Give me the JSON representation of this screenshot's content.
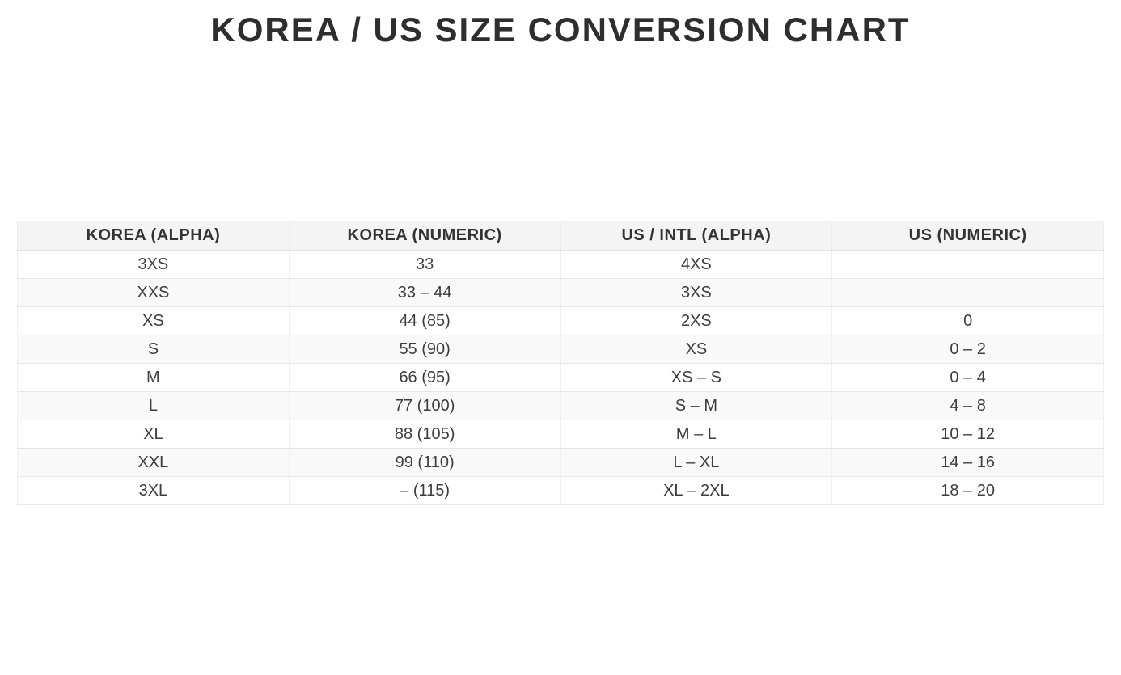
{
  "page": {
    "title": "KOREA / US SIZE CONVERSION CHART"
  },
  "table": {
    "columns": [
      "KOREA (ALPHA)",
      "KOREA (NUMERIC)",
      "US / INTL (ALPHA)",
      "US (NUMERIC)"
    ],
    "rows": [
      [
        "3XS",
        "33",
        "4XS",
        ""
      ],
      [
        "XXS",
        "33 – 44",
        "3XS",
        ""
      ],
      [
        "XS",
        "44 (85)",
        "2XS",
        "0"
      ],
      [
        "S",
        "55 (90)",
        "XS",
        "0 – 2"
      ],
      [
        "M",
        "66 (95)",
        "XS – S",
        "0 – 4"
      ],
      [
        "L",
        "77 (100)",
        "S – M",
        "4 – 8"
      ],
      [
        "XL",
        "88 (105)",
        "M – L",
        "10 – 12"
      ],
      [
        "XXL",
        "99 (110)",
        "L – XL",
        "14 – 16"
      ],
      [
        "3XL",
        "– (115)",
        "XL – 2XL",
        "18 – 20"
      ]
    ]
  },
  "chart_data": {
    "type": "table",
    "title": "KOREA / US SIZE CONVERSION CHART",
    "columns": [
      "KOREA (ALPHA)",
      "KOREA (NUMERIC)",
      "US / INTL (ALPHA)",
      "US (NUMERIC)"
    ],
    "rows": [
      [
        "3XS",
        "33",
        "4XS",
        ""
      ],
      [
        "XXS",
        "33 – 44",
        "3XS",
        ""
      ],
      [
        "XS",
        "44 (85)",
        "2XS",
        "0"
      ],
      [
        "S",
        "55 (90)",
        "XS",
        "0 – 2"
      ],
      [
        "M",
        "66 (95)",
        "XS – S",
        "0 – 4"
      ],
      [
        "L",
        "77 (100)",
        "S – M",
        "4 – 8"
      ],
      [
        "XL",
        "88 (105)",
        "M – L",
        "10 – 12"
      ],
      [
        "XXL",
        "99 (110)",
        "L – XL",
        "14 – 16"
      ],
      [
        "3XL",
        "– (115)",
        "XL – 2XL",
        "18 – 20"
      ]
    ]
  },
  "colors": {
    "title_text": "#2e2e2e",
    "header_bg": "#f4f4f4",
    "header_text": "#333333",
    "row_bg": "#ffffff",
    "row_alt_bg": "#f9f9f9",
    "border": "#e6e6e6",
    "cell_text": "#3d3d3d"
  }
}
